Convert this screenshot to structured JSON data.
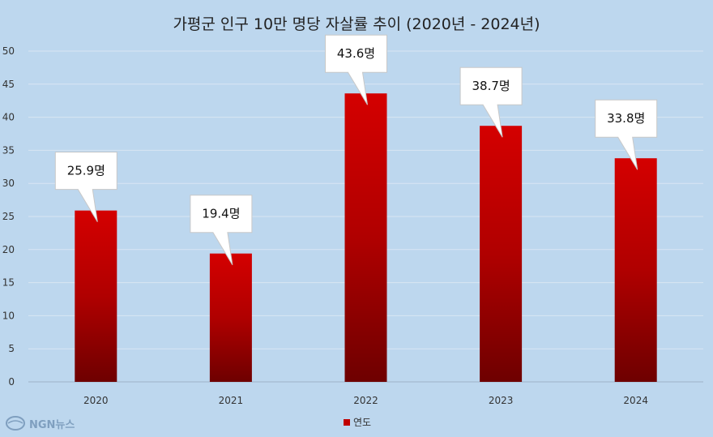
{
  "chart_data": {
    "type": "bar",
    "title": "가평군 인구 10만 명당 자살률 추이 (2020년 - 2024년)",
    "categories": [
      "2020",
      "2021",
      "2022",
      "2023",
      "2024"
    ],
    "series": [
      {
        "name": "연도",
        "values": [
          25.9,
          19.4,
          43.6,
          38.7,
          33.8
        ]
      }
    ],
    "data_labels": [
      "25.9명",
      "19.4명",
      "43.6명",
      "38.7명",
      "33.8명"
    ],
    "ylim": [
      0,
      50
    ],
    "yticks": [
      0,
      5,
      10,
      15,
      20,
      25,
      30,
      35,
      40,
      45,
      50
    ],
    "grid": true,
    "legend": "bottom",
    "colors": {
      "bar_top": "#d40000",
      "bar_bottom": "#6e0000",
      "background": "#bdd7ee",
      "legend_swatch": "#c00000"
    }
  },
  "watermark": {
    "text": "NGN뉴스"
  }
}
